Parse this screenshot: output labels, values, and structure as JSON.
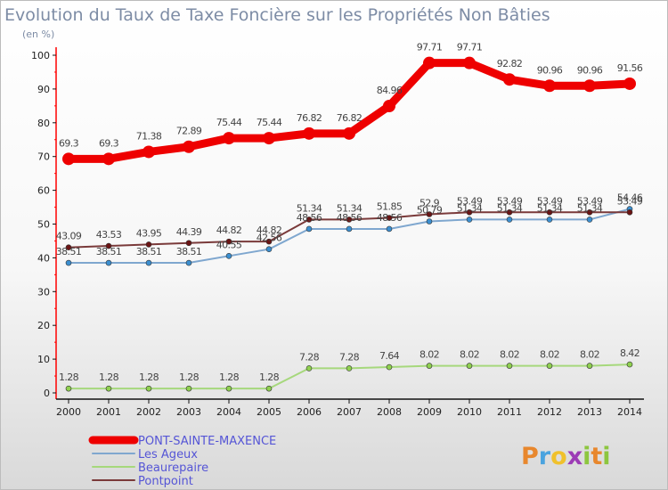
{
  "chart_data": {
    "type": "line",
    "title": "Evolution du Taux de Taxe Foncière sur les Propriétés Non Bâties",
    "subtitle": "(en %)",
    "xlabel": "",
    "ylabel": "",
    "ylim": [
      0,
      100
    ],
    "yticks": [
      "0",
      "10",
      "20",
      "30",
      "40",
      "50",
      "60",
      "70",
      "80",
      "90",
      "100"
    ],
    "categories": [
      "2000",
      "2001",
      "2002",
      "2003",
      "2004",
      "2005",
      "2006",
      "2007",
      "2008",
      "2009",
      "2010",
      "2011",
      "2012",
      "2013",
      "2014"
    ],
    "grid": false,
    "legend_position": "bottom-left",
    "series": [
      {
        "name": "PONT-SAINTE-MAXENCE",
        "color": "#ee0000",
        "marker": "#ee0000",
        "values": [
          69.3,
          69.3,
          71.38,
          72.89,
          75.44,
          75.44,
          76.82,
          76.82,
          84.96,
          97.71,
          97.71,
          92.82,
          90.96,
          90.96,
          91.56
        ],
        "labels": [
          "69.3",
          "69.3",
          "71.38",
          "72.89",
          "75.44",
          "75.44",
          "76.82",
          "76.82",
          "84.96",
          "97.71",
          "97.71",
          "92.82",
          "90.96",
          "90.96",
          "91.56"
        ]
      },
      {
        "name": "Les Ageux",
        "color": "#7fa7cf",
        "marker": "#3b8fd0",
        "values": [
          38.51,
          38.51,
          38.51,
          38.51,
          40.55,
          42.56,
          48.56,
          48.56,
          48.56,
          50.79,
          51.34,
          51.34,
          51.34,
          51.34,
          54.46
        ],
        "labels": [
          "38.51",
          "38.51",
          "38.51",
          "38.51",
          "40.55",
          "42.56",
          "48.56",
          "48.56",
          "48.56",
          "50.79",
          "51.34",
          "51.34",
          "51.34",
          "51.34",
          "54.46"
        ]
      },
      {
        "name": "Beaurepaire",
        "color": "#a6d87c",
        "marker": "#8fd14f",
        "values": [
          1.28,
          1.28,
          1.28,
          1.28,
          1.28,
          1.28,
          7.28,
          7.28,
          7.64,
          8.02,
          8.02,
          8.02,
          8.02,
          8.02,
          8.42
        ],
        "labels": [
          "1.28",
          "1.28",
          "1.28",
          "1.28",
          "1.28",
          "1.28",
          "7.28",
          "7.28",
          "7.64",
          "8.02",
          "8.02",
          "8.02",
          "8.02",
          "8.02",
          "8.42"
        ]
      },
      {
        "name": "Pontpoint",
        "color": "#7a3a3a",
        "marker": "#6b1414",
        "values": [
          43.09,
          43.53,
          43.95,
          44.39,
          44.82,
          44.82,
          51.34,
          51.34,
          51.85,
          52.9,
          53.49,
          53.49,
          53.49,
          53.49,
          53.49
        ],
        "labels": [
          "43.09",
          "43.53",
          "43.95",
          "44.39",
          "44.82",
          "44.82",
          "51.34",
          "51.34",
          "51.85",
          "52.9",
          "53.49",
          "53.49",
          "53.49",
          "53.49",
          "53.49"
        ]
      }
    ]
  },
  "logo": {
    "text": "Proxiti"
  }
}
